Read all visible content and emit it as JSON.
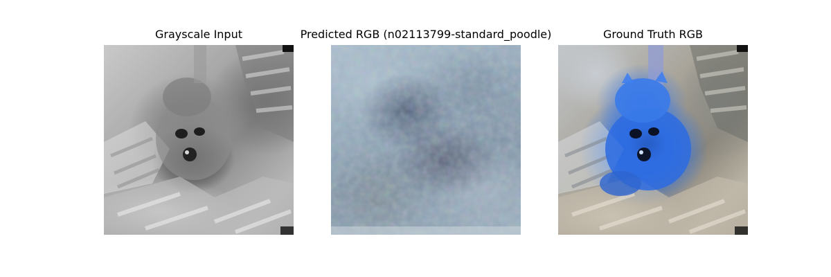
{
  "figure": {
    "panels": [
      {
        "title": "Grayscale Input"
      },
      {
        "title": "Predicted RGB (n02113799-standard_poodle)"
      },
      {
        "title": "Ground Truth RGB"
      }
    ]
  },
  "colors": {
    "background": "#ffffff",
    "title_text": "#000000",
    "ground_truth_dog_blue": "#2f6fe0"
  }
}
